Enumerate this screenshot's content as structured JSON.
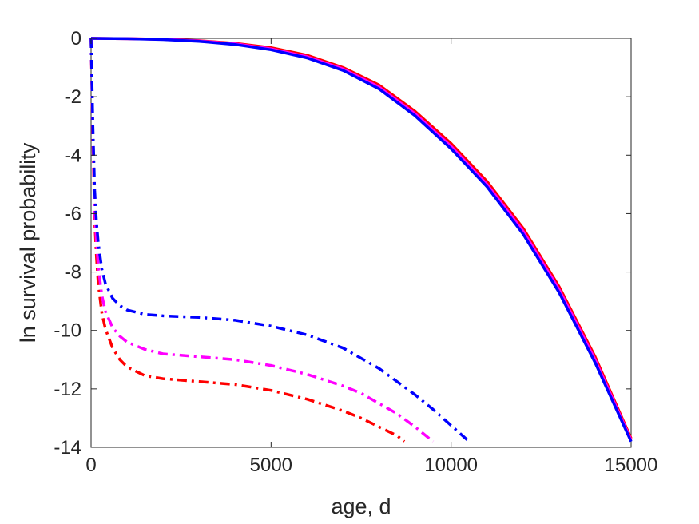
{
  "chart_data": {
    "type": "line",
    "title": "",
    "xlabel": "age, d",
    "ylabel": "ln survival probability",
    "xlim": [
      0,
      15000
    ],
    "ylim": [
      -14,
      0
    ],
    "xticks": [
      0,
      5000,
      10000,
      15000
    ],
    "yticks": [
      0,
      -2,
      -4,
      -6,
      -8,
      -10,
      -12,
      -14
    ],
    "grid": false,
    "legend": "none",
    "series": [
      {
        "color": "#ff0000",
        "style": "solid",
        "x": [
          0,
          1000,
          2000,
          3000,
          4000,
          5000,
          6000,
          7000,
          8000,
          9000,
          10000,
          11000,
          12000,
          13000,
          14000,
          15000
        ],
        "y": [
          0,
          -0.01,
          -0.03,
          -0.08,
          -0.17,
          -0.32,
          -0.58,
          -1.0,
          -1.6,
          -2.5,
          -3.6,
          -4.9,
          -6.5,
          -8.5,
          -10.9,
          -13.7
        ]
      },
      {
        "color": "#ff00ff",
        "style": "solid",
        "x": [
          0,
          1000,
          2000,
          3000,
          4000,
          5000,
          6000,
          7000,
          8000,
          9000,
          10000,
          11000,
          12000,
          13000,
          14000,
          15000
        ],
        "y": [
          0,
          -0.01,
          -0.03,
          -0.09,
          -0.19,
          -0.36,
          -0.63,
          -1.05,
          -1.67,
          -2.58,
          -3.7,
          -5.0,
          -6.6,
          -8.6,
          -11.0,
          -13.75
        ]
      },
      {
        "color": "#0000ff",
        "style": "solid",
        "x": [
          0,
          1000,
          2000,
          3000,
          4000,
          5000,
          6000,
          7000,
          8000,
          9000,
          10000,
          11000,
          12000,
          13000,
          14000,
          15000
        ],
        "y": [
          0,
          -0.01,
          -0.04,
          -0.1,
          -0.21,
          -0.39,
          -0.67,
          -1.1,
          -1.73,
          -2.65,
          -3.78,
          -5.08,
          -6.7,
          -8.7,
          -11.1,
          -13.8
        ]
      },
      {
        "color": "#ff0000",
        "style": "dashdot",
        "x": [
          0,
          50,
          100,
          150,
          200,
          300,
          400,
          600,
          800,
          1000,
          1500,
          2000,
          3000,
          4000,
          5000,
          6000,
          7000,
          7500,
          8000,
          8500,
          8700
        ],
        "y": [
          0,
          -3.5,
          -6.2,
          -7.5,
          -8.4,
          -9.4,
          -9.95,
          -10.6,
          -11.0,
          -11.25,
          -11.55,
          -11.65,
          -11.75,
          -11.85,
          -12.05,
          -12.35,
          -12.75,
          -13.0,
          -13.3,
          -13.6,
          -13.8
        ]
      },
      {
        "color": "#ff00ff",
        "style": "dashdot",
        "x": [
          0,
          50,
          100,
          150,
          200,
          300,
          400,
          600,
          800,
          1000,
          1500,
          2000,
          3000,
          4000,
          5000,
          6000,
          7000,
          7500,
          8000,
          8500,
          9000,
          9500
        ],
        "y": [
          0,
          -3.3,
          -5.8,
          -7.0,
          -7.8,
          -8.8,
          -9.35,
          -9.9,
          -10.2,
          -10.4,
          -10.65,
          -10.8,
          -10.9,
          -11.0,
          -11.2,
          -11.5,
          -11.9,
          -12.15,
          -12.5,
          -12.85,
          -13.3,
          -13.8
        ]
      },
      {
        "color": "#0000ff",
        "style": "dashdot",
        "x": [
          0,
          50,
          100,
          150,
          200,
          300,
          400,
          600,
          800,
          1000,
          1500,
          2000,
          3000,
          4000,
          5000,
          6000,
          7000,
          8000,
          9000,
          9500,
          10000,
          10500
        ],
        "y": [
          0,
          -3.0,
          -5.2,
          -6.3,
          -7.0,
          -7.9,
          -8.4,
          -8.9,
          -9.15,
          -9.3,
          -9.45,
          -9.5,
          -9.55,
          -9.65,
          -9.85,
          -10.15,
          -10.6,
          -11.3,
          -12.2,
          -12.7,
          -13.25,
          -13.8
        ]
      }
    ]
  }
}
